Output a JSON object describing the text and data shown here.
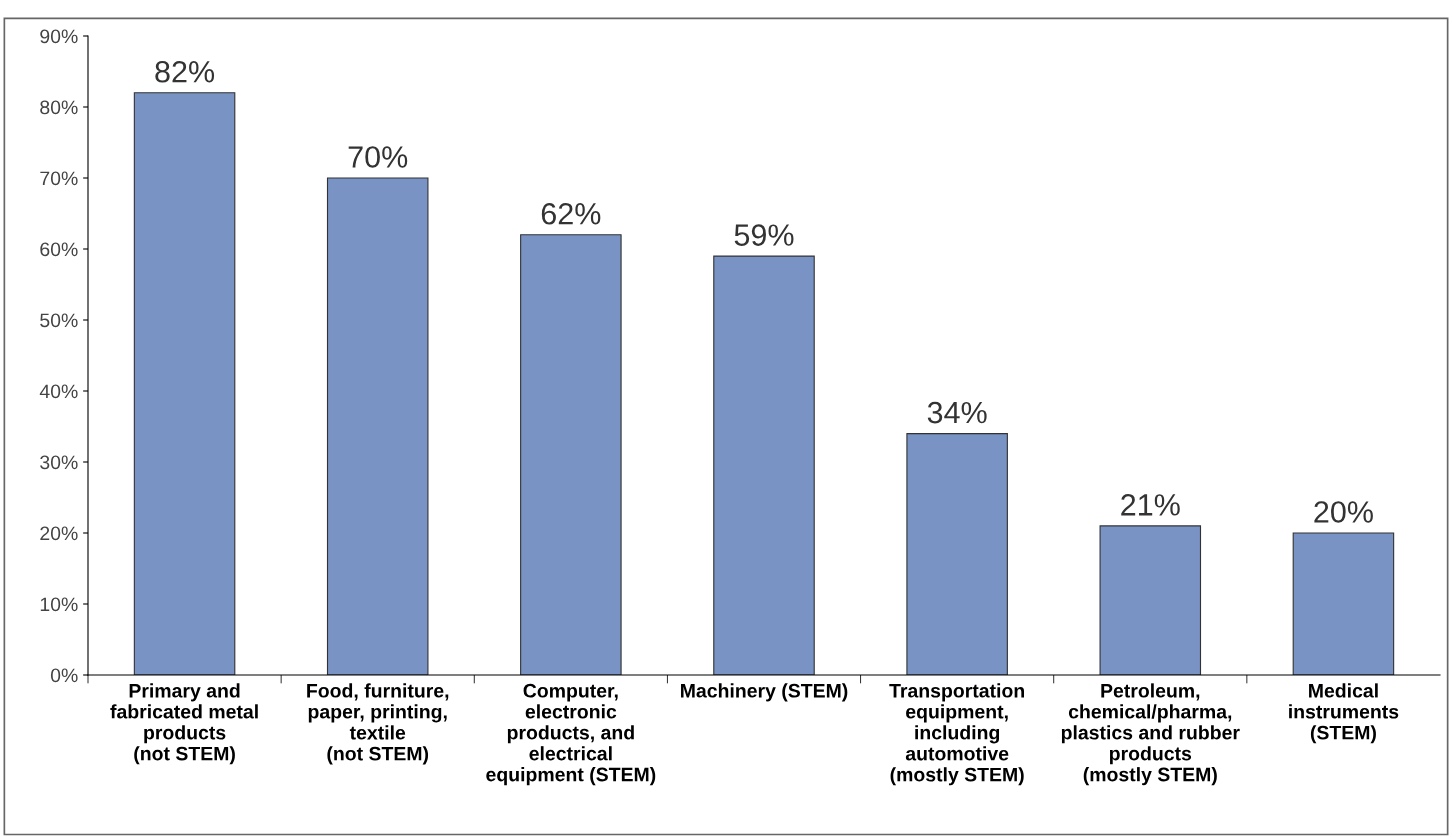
{
  "chart_data": {
    "type": "bar",
    "categories": [
      "Primary and\nfabricated metal\nproducts\n(not STEM)",
      "Food, furniture,\npaper, printing,\ntextile\n(not STEM)",
      "Computer,\nelectronic\nproducts, and\nelectrical\nequipment (STEM)",
      "Machinery (STEM)",
      "Transportation\nequipment,\nincluding\nautomotive\n(mostly STEM)",
      "Petroleum,\nchemical/pharma,\nplastics and rubber\nproducts\n(mostly STEM)",
      "Medical\ninstruments\n(STEM)"
    ],
    "values": [
      82,
      70,
      62,
      59,
      34,
      21,
      20
    ],
    "value_labels": [
      "82%",
      "70%",
      "62%",
      "59%",
      "34%",
      "21%",
      "20%"
    ],
    "color": "#7893c4",
    "ylim": [
      0,
      90
    ],
    "yticks": [
      {
        "value": 0,
        "label": "0%"
      },
      {
        "value": 10,
        "label": "10%"
      },
      {
        "value": 20,
        "label": "20%"
      },
      {
        "value": 30,
        "label": "30%"
      },
      {
        "value": 40,
        "label": "40%"
      },
      {
        "value": 50,
        "label": "50%"
      },
      {
        "value": 60,
        "label": "60%"
      },
      {
        "value": 70,
        "label": "70%"
      },
      {
        "value": 80,
        "label": "80%"
      },
      {
        "value": 90,
        "label": "90%"
      }
    ],
    "grid": false
  }
}
